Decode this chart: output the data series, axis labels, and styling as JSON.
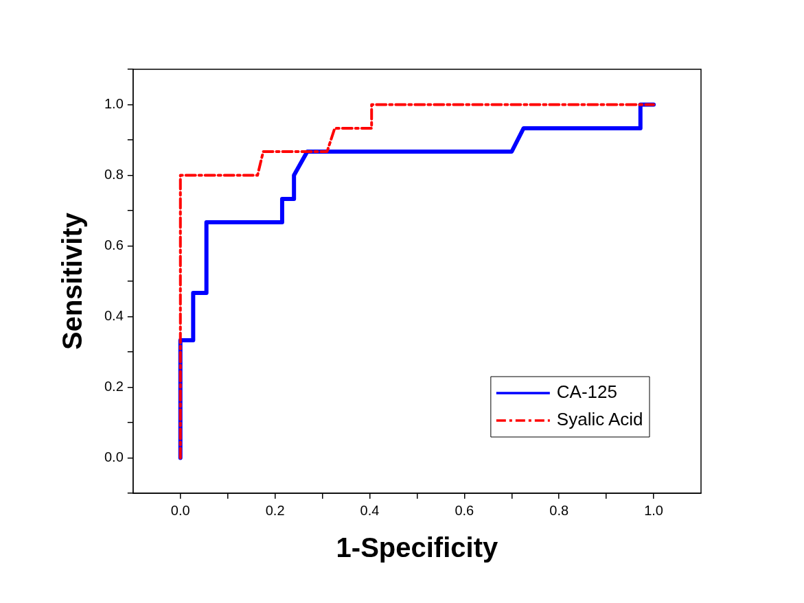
{
  "chart_data": {
    "type": "line",
    "xlabel": "1-Specificity",
    "ylabel": "Sensitivity",
    "xlim": [
      -0.1,
      1.1
    ],
    "ylim": [
      -0.1,
      1.1
    ],
    "xticks": [
      {
        "value": 0,
        "label": "0.0"
      },
      {
        "value": 0.1,
        "label": null
      },
      0.2,
      {
        "value": 0.3,
        "label": null
      },
      0.4,
      {
        "value": 0.5,
        "label": null
      },
      0.6,
      {
        "value": 0.7,
        "label": null
      },
      0.8,
      {
        "value": 0.9,
        "label": null
      },
      {
        "value": 1,
        "label": "1.0"
      }
    ],
    "yticks": [
      {
        "value": -0.1,
        "label": null
      },
      {
        "value": 0,
        "label": "0.0"
      },
      {
        "value": 0.1,
        "label": null
      },
      0.2,
      {
        "value": 0.3,
        "label": null
      },
      0.4,
      {
        "value": 0.5,
        "label": null
      },
      0.6,
      {
        "value": 0.7,
        "label": null
      },
      0.8,
      {
        "value": 0.9,
        "label": null
      },
      {
        "value": 1,
        "label": "1.0"
      },
      {
        "value": 1.1,
        "label": null
      }
    ],
    "grid": false,
    "legend": "bottom right",
    "marker": "none",
    "series": [
      {
        "name": "CA-125",
        "color": "#0000ff",
        "line_style": "solid",
        "x": [
          0,
          0,
          0.027,
          0.027,
          0.055,
          0.055,
          0.215,
          0.215,
          0.24,
          0.24,
          0.268,
          0.7,
          0.725,
          0.972,
          0.972,
          1
        ],
        "values": [
          0,
          0.333,
          0.333,
          0.467,
          0.467,
          0.667,
          0.667,
          0.733,
          0.733,
          0.8,
          0.867,
          0.867,
          0.933,
          0.933,
          1,
          1
        ]
      },
      {
        "name": "Syalic Acid",
        "color": "#ff0000",
        "line_style": "dashdot",
        "x": [
          0,
          0,
          0.163,
          0.175,
          0.31,
          0.326,
          0.404,
          0.404,
          1
        ],
        "values": [
          0,
          0.8,
          0.8,
          0.867,
          0.867,
          0.933,
          0.933,
          1,
          1
        ]
      }
    ]
  }
}
